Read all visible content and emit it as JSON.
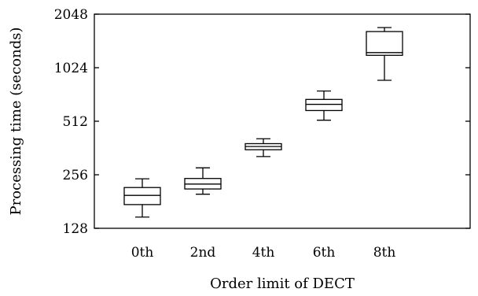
{
  "chart_data": {
    "type": "box",
    "xlabel": "Order limit of DECT",
    "ylabel": "Processing time (seconds)",
    "y_scale": "log2",
    "ylim": [
      128,
      2048
    ],
    "yticks": [
      128,
      256,
      512,
      1024,
      2048
    ],
    "categories": [
      "0th",
      "2nd",
      "4th",
      "6th",
      "8th"
    ],
    "boxes": [
      {
        "category": "0th",
        "min": 148,
        "q1": 174,
        "median": 196,
        "q3": 217,
        "max": 243
      },
      {
        "category": "2nd",
        "min": 199,
        "q1": 213,
        "median": 227,
        "q3": 244,
        "max": 280
      },
      {
        "category": "4th",
        "min": 324,
        "q1": 354,
        "median": 369,
        "q3": 383,
        "max": 408
      },
      {
        "category": "6th",
        "min": 519,
        "q1": 588,
        "median": 637,
        "q3": 679,
        "max": 757
      },
      {
        "category": "8th",
        "min": 870,
        "q1": 1202,
        "median": 1245,
        "q3": 1635,
        "max": 1722
      }
    ],
    "grid": false,
    "legend": "none"
  }
}
